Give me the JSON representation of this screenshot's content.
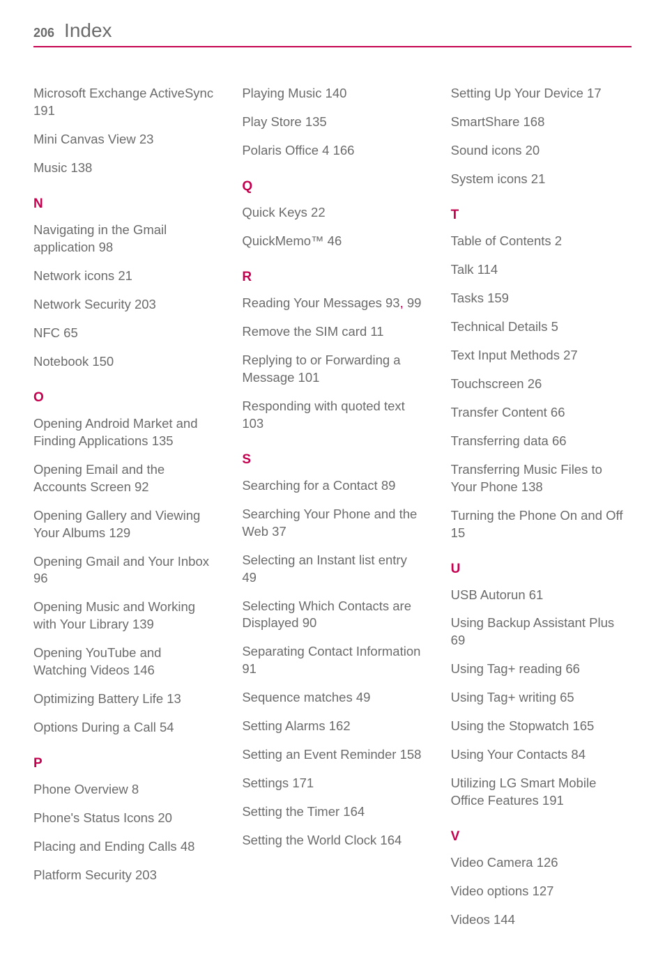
{
  "header": {
    "page_number": "206",
    "title": "Index"
  },
  "colors": {
    "accent": "#c4004e",
    "text": "#6b6b6b",
    "background": "#ffffff"
  },
  "typography": {
    "body_fontsize_pt": 14,
    "title_fontsize_pt": 21,
    "letter_fontsize_pt": 14
  },
  "columns": [
    {
      "items": [
        {
          "type": "entry",
          "text": "Microsoft Exchange ActiveSync  191"
        },
        {
          "type": "entry",
          "text": "Mini Canvas View  23"
        },
        {
          "type": "entry",
          "text": "Music  138"
        },
        {
          "type": "letter",
          "text": "N"
        },
        {
          "type": "entry",
          "text": "Navigating in the Gmail application  98"
        },
        {
          "type": "entry",
          "text": "Network icons  21"
        },
        {
          "type": "entry",
          "text": "Network Security  203"
        },
        {
          "type": "entry",
          "text": "NFC  65"
        },
        {
          "type": "entry",
          "text": "Notebook  150"
        },
        {
          "type": "letter",
          "text": "O"
        },
        {
          "type": "entry",
          "text": "Opening Android Market and Finding Applications  135"
        },
        {
          "type": "entry",
          "text": "Opening Email and the Accounts Screen  92"
        },
        {
          "type": "entry",
          "text": "Opening Gallery and Viewing Your Albums  129"
        },
        {
          "type": "entry",
          "text": "Opening Gmail and Your Inbox  96"
        },
        {
          "type": "entry",
          "text": "Opening Music and Working with Your Library  139"
        },
        {
          "type": "entry",
          "text": "Opening YouTube and Watching Videos  146"
        },
        {
          "type": "entry",
          "text": "Optimizing Battery Life  13"
        },
        {
          "type": "entry",
          "text": "Options During a Call  54"
        },
        {
          "type": "letter",
          "text": "P"
        },
        {
          "type": "entry",
          "text": "Phone Overview  8"
        },
        {
          "type": "entry",
          "text": "Phone's Status Icons  20"
        },
        {
          "type": "entry",
          "text": "Placing and Ending Calls  48"
        },
        {
          "type": "entry",
          "text": "Platform Security  203"
        }
      ]
    },
    {
      "items": [
        {
          "type": "entry",
          "text": "Playing Music  140"
        },
        {
          "type": "entry",
          "text": "Play Store  135"
        },
        {
          "type": "entry",
          "text": "Polaris Office 4  166"
        },
        {
          "type": "letter",
          "text": "Q"
        },
        {
          "type": "entry",
          "text": "Quick Keys  22"
        },
        {
          "type": "entry",
          "text": "QuickMemo™  46"
        },
        {
          "type": "letter",
          "text": "R"
        },
        {
          "type": "entry_comma",
          "before": "Reading Your Messages  93",
          "after": " 99"
        },
        {
          "type": "entry",
          "text": "Remove the SIM card  11"
        },
        {
          "type": "entry",
          "text": "Replying to or Forwarding a Message  101"
        },
        {
          "type": "entry",
          "text": "Responding with quoted text  103"
        },
        {
          "type": "letter",
          "text": "S"
        },
        {
          "type": "entry",
          "text": "Searching for a Contact  89"
        },
        {
          "type": "entry",
          "text": "Searching Your Phone and the Web  37"
        },
        {
          "type": "entry",
          "text": "Selecting an Instant list entry  49"
        },
        {
          "type": "entry",
          "text": "Selecting Which Contacts are Displayed  90"
        },
        {
          "type": "entry",
          "text": "Separating Contact Information  91"
        },
        {
          "type": "entry",
          "text": "Sequence matches  49"
        },
        {
          "type": "entry",
          "text": "Setting Alarms  162"
        },
        {
          "type": "entry",
          "text": "Setting an Event Reminder  158"
        },
        {
          "type": "entry",
          "text": "Settings  171"
        },
        {
          "type": "entry",
          "text": "Setting the Timer  164"
        },
        {
          "type": "entry",
          "text": "Setting the World Clock  164"
        }
      ]
    },
    {
      "items": [
        {
          "type": "entry",
          "text": "Setting Up Your Device  17"
        },
        {
          "type": "entry",
          "text": "SmartShare  168"
        },
        {
          "type": "entry",
          "text": "Sound icons  20"
        },
        {
          "type": "entry",
          "text": "System icons  21"
        },
        {
          "type": "letter",
          "text": "T"
        },
        {
          "type": "entry",
          "text": "Table of Contents  2"
        },
        {
          "type": "entry",
          "text": "Talk  114"
        },
        {
          "type": "entry",
          "text": "Tasks  159"
        },
        {
          "type": "entry",
          "text": "Technical Details  5"
        },
        {
          "type": "entry",
          "text": "Text Input Methods  27"
        },
        {
          "type": "entry",
          "text": "Touchscreen  26"
        },
        {
          "type": "entry",
          "text": "Transfer Content  66"
        },
        {
          "type": "entry",
          "text": "Transferring data  66"
        },
        {
          "type": "entry",
          "text": "Transferring Music Files to Your Phone  138"
        },
        {
          "type": "entry",
          "text": "Turning the Phone On and Off  15"
        },
        {
          "type": "letter",
          "text": "U"
        },
        {
          "type": "entry",
          "text": "USB Autorun  61"
        },
        {
          "type": "entry",
          "text": "Using Backup Assistant Plus  69"
        },
        {
          "type": "entry",
          "text": "Using Tag+ reading  66"
        },
        {
          "type": "entry",
          "text": "Using Tag+ writing  65"
        },
        {
          "type": "entry",
          "text": "Using the Stopwatch  165"
        },
        {
          "type": "entry",
          "text": "Using Your Contacts  84"
        },
        {
          "type": "entry",
          "text": "Utilizing LG Smart Mobile Office Features  191"
        },
        {
          "type": "letter",
          "text": "V"
        },
        {
          "type": "entry",
          "text": "Video Camera  126"
        },
        {
          "type": "entry",
          "text": "Video options  127"
        },
        {
          "type": "entry",
          "text": "Videos  144"
        }
      ]
    }
  ]
}
